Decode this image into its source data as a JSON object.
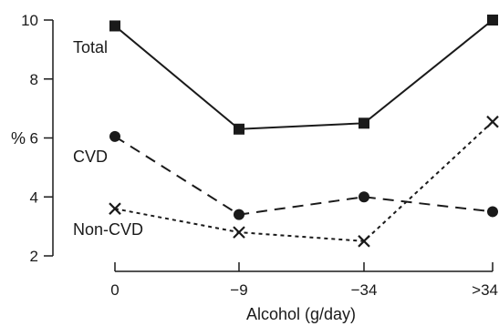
{
  "chart_data": {
    "type": "line",
    "categories": [
      "0",
      "−9",
      "−34",
      ">34"
    ],
    "series": [
      {
        "name": "Total",
        "values": [
          9.8,
          6.3,
          6.5,
          10.0
        ],
        "marker": "square",
        "dash": "solid"
      },
      {
        "name": "CVD",
        "values": [
          6.05,
          3.4,
          4.0,
          3.5
        ],
        "marker": "circle",
        "dash": "dashed"
      },
      {
        "name": "Non-CVD",
        "values": [
          3.6,
          2.8,
          2.5,
          6.55
        ],
        "marker": "cross",
        "dash": "dotted"
      }
    ],
    "xlabel": "Alcohol (g/day)",
    "ylabel": "%",
    "ylim": [
      2,
      10
    ],
    "yticks": [
      "2",
      "4",
      "6",
      "8",
      "10"
    ],
    "grid": false,
    "legend": "inline labels",
    "line_color": "#1a1a1a"
  }
}
